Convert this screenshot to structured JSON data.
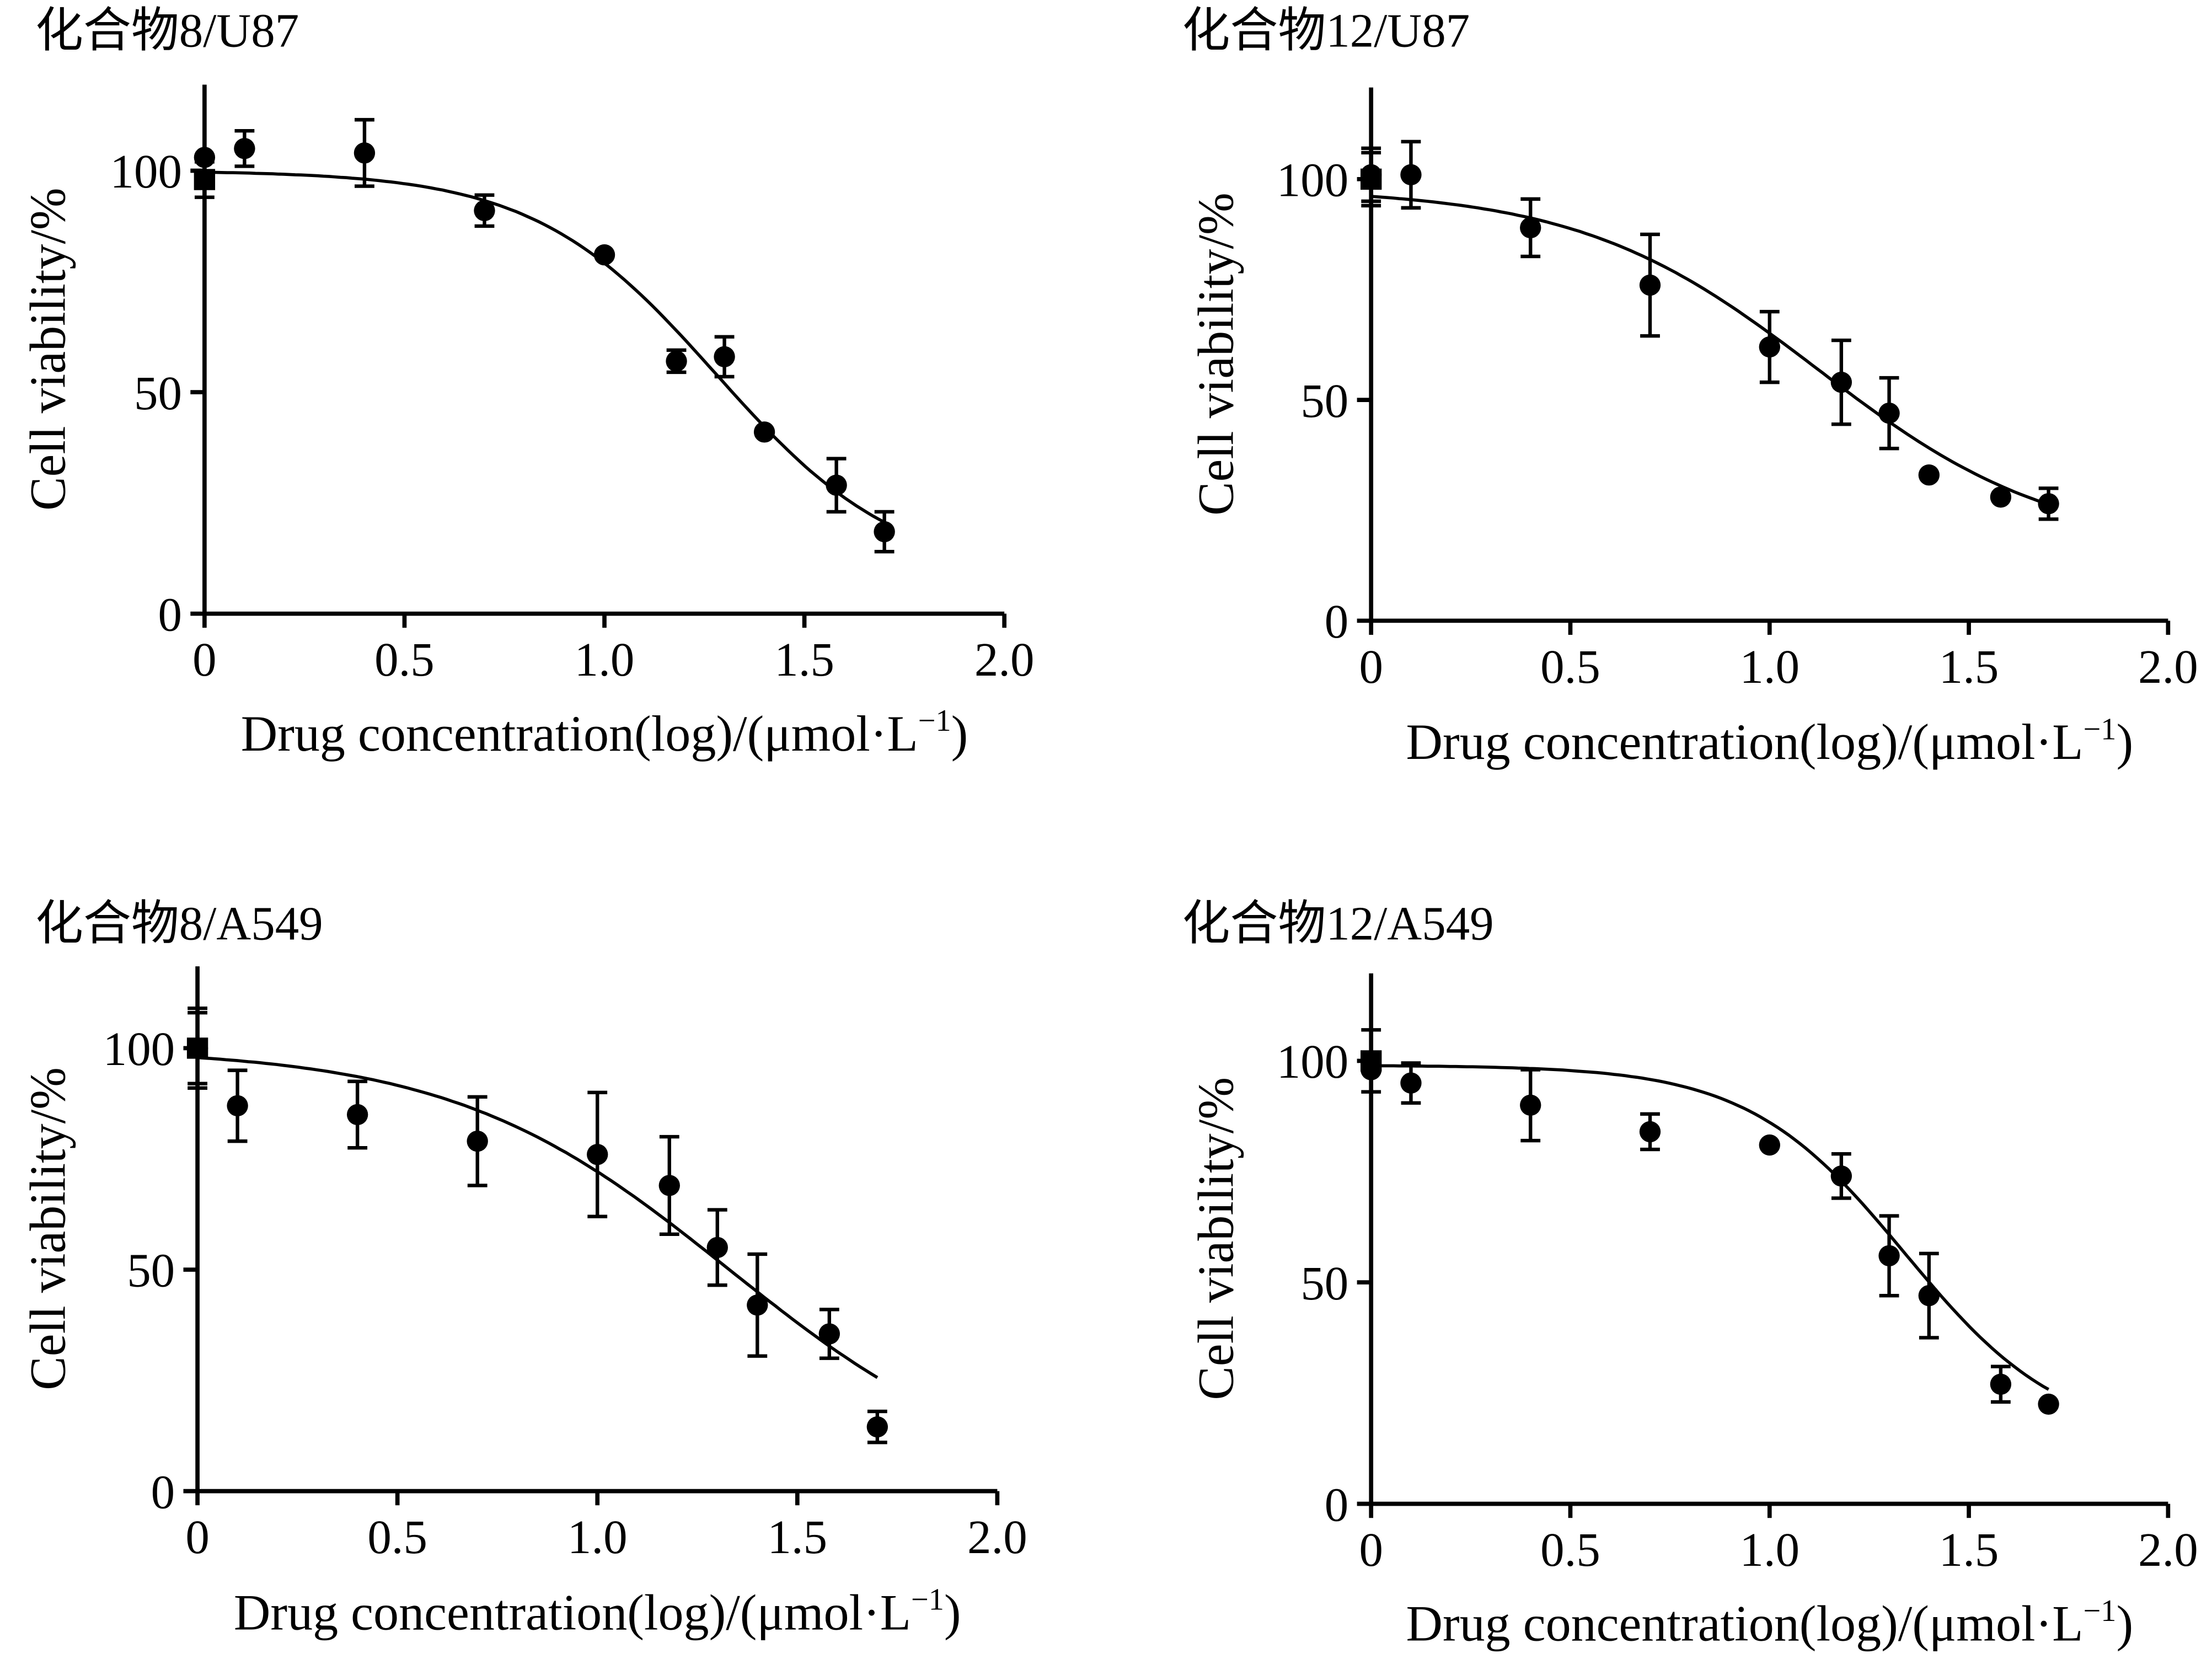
{
  "figure": {
    "charts": 4
  },
  "chart_data": [
    {
      "type": "scatter",
      "title": "化合物8/U87",
      "xlabel": "Drug concentration(log)/(μmol·L",
      "xlabel_sup": "−1",
      "xlabel_close": ")",
      "ylabel": "Cell viability/%",
      "xlim": [
        0,
        2.0
      ],
      "ylim": [
        0,
        120
      ],
      "xticks": [
        0,
        0.5,
        1.0,
        1.5,
        2.0
      ],
      "xtick_labels": [
        "0",
        "0.5",
        "1.0",
        "1.5",
        "2.0"
      ],
      "yticks": [
        0,
        50,
        100
      ],
      "ytick_labels": [
        "0",
        "50",
        "100"
      ],
      "grid": false,
      "control": {
        "x": 0,
        "y": 98,
        "err": 4
      },
      "series": [
        {
          "x": [
            0,
            0.1,
            0.4,
            0.7,
            1.0,
            1.18,
            1.3,
            1.4,
            1.58,
            1.7
          ],
          "y": [
            103,
            105,
            104,
            91,
            81,
            57,
            58,
            41,
            29,
            18.5
          ],
          "err": [
            0,
            4,
            7.5,
            3.5,
            0,
            2.5,
            4.5,
            0,
            6,
            4.5
          ]
        }
      ],
      "fit": {
        "top": 100,
        "bottom": 8,
        "logIC50": 1.28,
        "hill": -1.9,
        "x_end": 1.7
      }
    },
    {
      "type": "scatter",
      "title": "化合物12/U87",
      "xlabel": "Drug concentration(log)/(μmol·L",
      "xlabel_sup": "−1",
      "xlabel_close": ")",
      "ylabel": "Cell viability/%",
      "xlim": [
        0,
        2.0
      ],
      "ylim": [
        0,
        120
      ],
      "xticks": [
        0,
        0.5,
        1.0,
        1.5,
        2.0
      ],
      "xtick_labels": [
        "0",
        "0.5",
        "1.0",
        "1.5",
        "2.0"
      ],
      "yticks": [
        0,
        50,
        100
      ],
      "ytick_labels": [
        "0",
        "50",
        "100"
      ],
      "grid": false,
      "control": {
        "x": 0,
        "y": 100,
        "err": 6
      },
      "series": [
        {
          "x": [
            0,
            0.1,
            0.4,
            0.7,
            1.0,
            1.18,
            1.3,
            1.4,
            1.58,
            1.7
          ],
          "y": [
            101,
            101,
            89,
            76,
            62,
            54,
            47,
            33,
            28,
            26.5
          ],
          "err": [
            6,
            7.5,
            6.5,
            11.5,
            8,
            9.5,
            8,
            0,
            0,
            3.5
          ]
        }
      ],
      "fit": {
        "top": 98,
        "bottom": 16,
        "logIC50": 1.12,
        "hill": -1.45,
        "x_end": 1.7
      }
    },
    {
      "type": "scatter",
      "title": "化合物8/A549",
      "xlabel": "Drug concentration(log)/(μmol·L",
      "xlabel_sup": "−1",
      "xlabel_close": ")",
      "ylabel": "Cell viability/%",
      "xlim": [
        0,
        2.0
      ],
      "ylim": [
        0,
        120
      ],
      "xticks": [
        0,
        0.5,
        1.0,
        1.5,
        2.0
      ],
      "xtick_labels": [
        "0",
        "0.5",
        "1.0",
        "1.5",
        "2.0"
      ],
      "yticks": [
        0,
        50,
        100
      ],
      "ytick_labels": [
        "0",
        "50",
        "100"
      ],
      "grid": false,
      "control": {
        "x": 0,
        "y": 100,
        "err": 8
      },
      "series": [
        {
          "x": [
            0,
            0.1,
            0.4,
            0.7,
            1.0,
            1.18,
            1.3,
            1.4,
            1.58,
            1.7
          ],
          "y": [
            100,
            87,
            85,
            79,
            76,
            69,
            55,
            42,
            35.5,
            14.5
          ],
          "err": [
            9,
            8,
            7.5,
            10,
            14,
            11,
            8.5,
            11.5,
            5.5,
            3.5
          ]
        }
      ],
      "fit": {
        "top": 100,
        "bottom": 0,
        "logIC50": 1.33,
        "hill": -1.25,
        "x_end": 1.7
      }
    },
    {
      "type": "scatter",
      "title": "化合物12/A549",
      "xlabel": "Drug concentration(log)/(μmol·L",
      "xlabel_sup": "−1",
      "xlabel_close": ")",
      "ylabel": "Cell viability/%",
      "xlim": [
        0,
        2.0
      ],
      "ylim": [
        0,
        120
      ],
      "xticks": [
        0,
        0.5,
        1.0,
        1.5,
        2.0
      ],
      "xtick_labels": [
        "0",
        "0.5",
        "1.0",
        "1.5",
        "2.0"
      ],
      "yticks": [
        0,
        50,
        100
      ],
      "ytick_labels": [
        "0",
        "50",
        "100"
      ],
      "grid": false,
      "control": {
        "x": 0,
        "y": 100,
        "err": 7
      },
      "series": [
        {
          "x": [
            0,
            0.1,
            0.4,
            0.7,
            1.0,
            1.18,
            1.3,
            1.4,
            1.58,
            1.7
          ],
          "y": [
            98,
            95,
            90,
            84,
            81,
            74,
            56,
            47,
            27,
            22.5
          ],
          "err": [
            0,
            4.5,
            8,
            4,
            0,
            5,
            9,
            9.5,
            4,
            0
          ]
        }
      ],
      "fit": {
        "top": 99,
        "bottom": 14,
        "logIC50": 1.34,
        "hill": -2.2,
        "x_end": 1.7
      }
    }
  ]
}
